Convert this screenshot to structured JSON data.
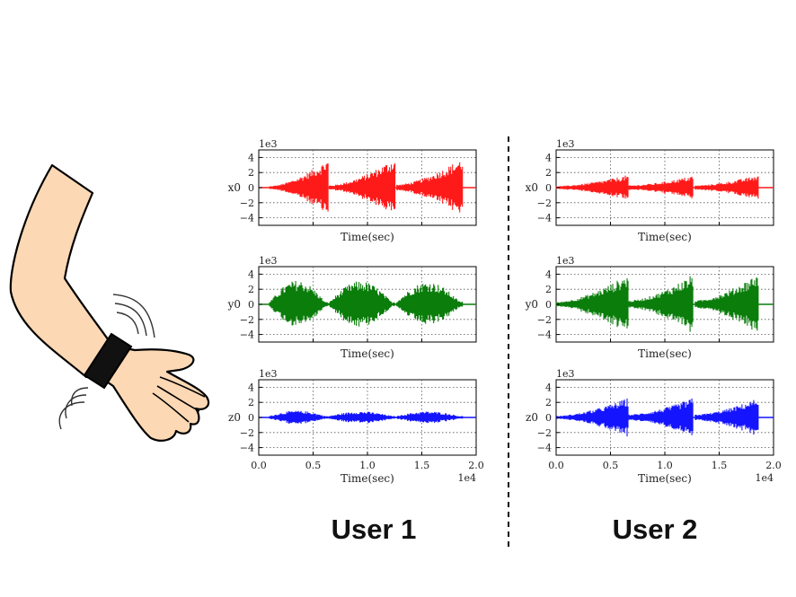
{
  "users": [
    "User 1",
    "User 2"
  ],
  "colors": {
    "x0": "#ff1a1a",
    "y0": "#0a7d0a",
    "z0": "#1414ff",
    "skin": "#fcd8b4",
    "band": "#111111"
  },
  "icons": [
    "arm-icon",
    "wristband-icon",
    "vibration-icon"
  ],
  "chart_data": [
    {
      "type": "line",
      "user": "User 1",
      "ylabel": "x0",
      "xlabel": "Time(sec)",
      "y_scale_label": "1e3",
      "x_scale_label": "",
      "yticks": [
        "4",
        "2",
        "0",
        "−2",
        "−4"
      ],
      "xticks": [
        "",
        "",
        "",
        "",
        ""
      ],
      "xlim": [
        0,
        20000
      ],
      "ylim": [
        -5,
        5
      ],
      "grid": true,
      "bursts": [
        {
          "x_start": 1000,
          "x_end": 6400,
          "amp_start": 0.2,
          "amp_end": 3.8,
          "profile": "grow"
        },
        {
          "x_start": 6500,
          "x_end": 12500,
          "amp_start": 0.3,
          "amp_end": 4.0,
          "profile": "grow"
        },
        {
          "x_start": 12700,
          "x_end": 18700,
          "amp_start": 0.4,
          "amp_end": 4.0,
          "profile": "grow"
        }
      ]
    },
    {
      "type": "line",
      "user": "User 1",
      "ylabel": "y0",
      "xlabel": "Time(sec)",
      "y_scale_label": "1e3",
      "x_scale_label": "",
      "yticks": [
        "4",
        "2",
        "0",
        "−2",
        "−4"
      ],
      "xticks": [
        "",
        "",
        "",
        "",
        ""
      ],
      "xlim": [
        0,
        20000
      ],
      "ylim": [
        -5,
        5
      ],
      "grid": true,
      "bursts": [
        {
          "x_start": 1000,
          "x_end": 6400,
          "amp_start": 0.3,
          "amp_end": 3.2,
          "profile": "hump"
        },
        {
          "x_start": 6500,
          "x_end": 12500,
          "amp_start": 0.3,
          "amp_end": 3.1,
          "profile": "hump"
        },
        {
          "x_start": 12700,
          "x_end": 18700,
          "amp_start": 0.4,
          "amp_end": 3.0,
          "profile": "hump"
        }
      ]
    },
    {
      "type": "line",
      "user": "User 1",
      "ylabel": "z0",
      "xlabel": "Time(sec)",
      "y_scale_label": "1e3",
      "x_scale_label": "1e4",
      "yticks": [
        "4",
        "2",
        "0",
        "−2",
        "−4"
      ],
      "xticks": [
        "0.0",
        "0.5",
        "1.0",
        "1.5",
        "2.0"
      ],
      "xlim": [
        0,
        20000
      ],
      "ylim": [
        -5,
        5
      ],
      "grid": true,
      "bursts": [
        {
          "x_start": 1000,
          "x_end": 6400,
          "amp_start": 0.2,
          "amp_end": 0.9,
          "profile": "hump"
        },
        {
          "x_start": 6500,
          "x_end": 12500,
          "amp_start": 0.2,
          "amp_end": 0.8,
          "profile": "hump"
        },
        {
          "x_start": 12700,
          "x_end": 18700,
          "amp_start": 0.2,
          "amp_end": 0.8,
          "profile": "hump"
        }
      ]
    },
    {
      "type": "line",
      "user": "User 2",
      "ylabel": "x0",
      "xlabel": "Time(sec)",
      "y_scale_label": "1e3",
      "x_scale_label": "",
      "yticks": [
        "4",
        "2",
        "0",
        "−2",
        "−4"
      ],
      "xticks": [
        "",
        "",
        "",
        "",
        ""
      ],
      "xlim": [
        0,
        20000
      ],
      "ylim": [
        -5,
        5
      ],
      "grid": true,
      "bursts": [
        {
          "x_start": 0,
          "x_end": 6600,
          "amp_start": 0.2,
          "amp_end": 1.7,
          "profile": "grow"
        },
        {
          "x_start": 6700,
          "x_end": 12600,
          "amp_start": 0.3,
          "amp_end": 1.6,
          "profile": "grow"
        },
        {
          "x_start": 12800,
          "x_end": 18600,
          "amp_start": 0.3,
          "amp_end": 1.7,
          "profile": "grow"
        }
      ]
    },
    {
      "type": "line",
      "user": "User 2",
      "ylabel": "y0",
      "xlabel": "Time(sec)",
      "y_scale_label": "1e3",
      "x_scale_label": "",
      "yticks": [
        "4",
        "2",
        "0",
        "−2",
        "−4"
      ],
      "xticks": [
        "",
        "",
        "",
        "",
        ""
      ],
      "xlim": [
        0,
        20000
      ],
      "ylim": [
        -5,
        5
      ],
      "grid": true,
      "bursts": [
        {
          "x_start": 0,
          "x_end": 6600,
          "amp_start": 0.3,
          "amp_end": 4.0,
          "profile": "grow"
        },
        {
          "x_start": 6700,
          "x_end": 12600,
          "amp_start": 0.5,
          "amp_end": 4.0,
          "profile": "grow"
        },
        {
          "x_start": 12800,
          "x_end": 18600,
          "amp_start": 0.5,
          "amp_end": 4.2,
          "profile": "grow"
        }
      ]
    },
    {
      "type": "line",
      "user": "User 2",
      "ylabel": "z0",
      "xlabel": "Time(sec)",
      "y_scale_label": "1e3",
      "x_scale_label": "1e4",
      "yticks": [
        "4",
        "2",
        "0",
        "−2",
        "−4"
      ],
      "xticks": [
        "0.0",
        "0.5",
        "1.0",
        "1.5",
        "2.0"
      ],
      "xlim": [
        0,
        20000
      ],
      "ylim": [
        -5,
        5
      ],
      "grid": true,
      "bursts": [
        {
          "x_start": 0,
          "x_end": 6600,
          "amp_start": 0.2,
          "amp_end": 2.6,
          "profile": "grow"
        },
        {
          "x_start": 6700,
          "x_end": 12600,
          "amp_start": 0.4,
          "amp_end": 2.6,
          "profile": "grow"
        },
        {
          "x_start": 12800,
          "x_end": 18600,
          "amp_start": 0.4,
          "amp_end": 2.6,
          "profile": "grow"
        }
      ]
    }
  ]
}
